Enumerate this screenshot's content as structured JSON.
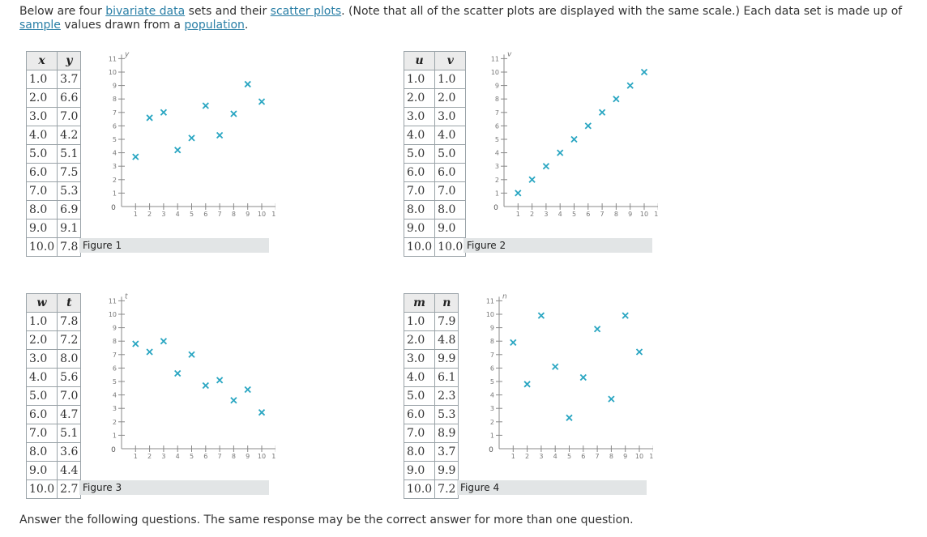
{
  "intro": {
    "t1": "Below are four ",
    "link1": "bivariate data",
    "t2": " sets and their ",
    "link2": "scatter plots",
    "t3": ". (Note that all of the scatter plots are displayed with the same scale.) Each data set is made up of ",
    "link3": "sample",
    "t4": " values drawn from a ",
    "link4": "population",
    "t5": "."
  },
  "answer_text": "Answer the following questions. The same response may be the correct answer for more than one question.",
  "colors": {
    "mark": "#2aa6c2",
    "caption_bg": "#e2e5e6",
    "link": "#2a7fa6"
  },
  "chart_data": [
    {
      "type": "scatter",
      "x_name": "x",
      "y_name": "y",
      "title": "Figure 1",
      "xlim": [
        0,
        11
      ],
      "ylim": [
        0,
        11
      ],
      "x": [
        1.0,
        2.0,
        3.0,
        4.0,
        5.0,
        6.0,
        7.0,
        8.0,
        9.0,
        10.0
      ],
      "y": [
        3.7,
        6.6,
        7.0,
        4.2,
        5.1,
        7.5,
        5.3,
        6.9,
        9.1,
        7.8
      ],
      "x_display": [
        "1.0",
        "2.0",
        "3.0",
        "4.0",
        "5.0",
        "6.0",
        "7.0",
        "8.0",
        "9.0",
        "10.0"
      ],
      "y_display": [
        "3.7",
        "6.6",
        "7.0",
        "4.2",
        "5.1",
        "7.5",
        "5.3",
        "6.9",
        "9.1",
        "7.8"
      ]
    },
    {
      "type": "scatter",
      "x_name": "u",
      "y_name": "v",
      "title": "Figure 2",
      "xlim": [
        0,
        11
      ],
      "ylim": [
        0,
        11
      ],
      "x": [
        1.0,
        2.0,
        3.0,
        4.0,
        5.0,
        6.0,
        7.0,
        8.0,
        9.0,
        10.0
      ],
      "y": [
        1.0,
        2.0,
        3.0,
        4.0,
        5.0,
        6.0,
        7.0,
        8.0,
        9.0,
        10.0
      ],
      "x_display": [
        "1.0",
        "2.0",
        "3.0",
        "4.0",
        "5.0",
        "6.0",
        "7.0",
        "8.0",
        "9.0",
        "10.0"
      ],
      "y_display": [
        "1.0",
        "2.0",
        "3.0",
        "4.0",
        "5.0",
        "6.0",
        "7.0",
        "8.0",
        "9.0",
        "10.0"
      ]
    },
    {
      "type": "scatter",
      "x_name": "w",
      "y_name": "t",
      "title": "Figure 3",
      "xlim": [
        0,
        11
      ],
      "ylim": [
        0,
        11
      ],
      "x": [
        1.0,
        2.0,
        3.0,
        4.0,
        5.0,
        6.0,
        7.0,
        8.0,
        9.0,
        10.0
      ],
      "y": [
        7.8,
        7.2,
        8.0,
        5.6,
        7.0,
        4.7,
        5.1,
        3.6,
        4.4,
        2.7
      ],
      "x_display": [
        "1.0",
        "2.0",
        "3.0",
        "4.0",
        "5.0",
        "6.0",
        "7.0",
        "8.0",
        "9.0",
        "10.0"
      ],
      "y_display": [
        "7.8",
        "7.2",
        "8.0",
        "5.6",
        "7.0",
        "4.7",
        "5.1",
        "3.6",
        "4.4",
        "2.7"
      ]
    },
    {
      "type": "scatter",
      "x_name": "m",
      "y_name": "n",
      "title": "Figure 4",
      "xlim": [
        0,
        11
      ],
      "ylim": [
        0,
        11
      ],
      "x": [
        1.0,
        2.0,
        3.0,
        4.0,
        5.0,
        6.0,
        7.0,
        8.0,
        9.0,
        10.0
      ],
      "y": [
        7.9,
        4.8,
        9.9,
        6.1,
        2.3,
        5.3,
        8.9,
        3.7,
        9.9,
        7.2
      ],
      "x_display": [
        "1.0",
        "2.0",
        "3.0",
        "4.0",
        "5.0",
        "6.0",
        "7.0",
        "8.0",
        "9.0",
        "10.0"
      ],
      "y_display": [
        "7.9",
        "4.8",
        "9.9",
        "6.1",
        "2.3",
        "5.3",
        "8.9",
        "3.7",
        "9.9",
        "7.2"
      ]
    }
  ]
}
